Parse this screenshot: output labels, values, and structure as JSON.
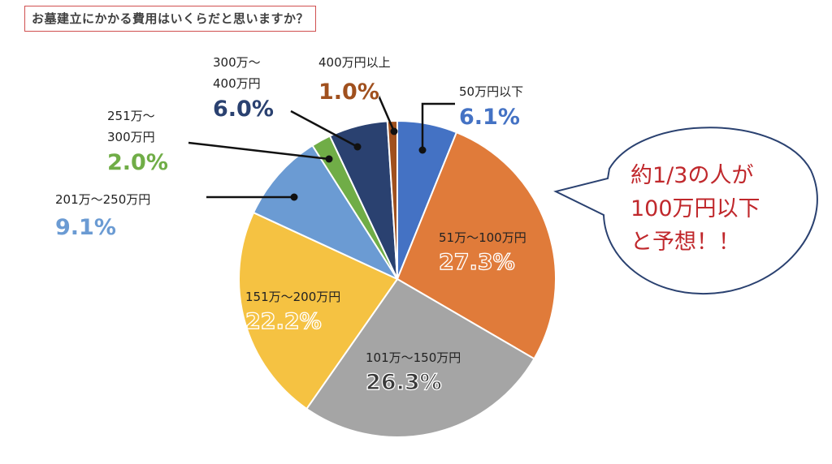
{
  "title": "お墓建立にかかる費用はいくらだと思いますか？",
  "callout": {
    "lines": [
      "約1/3の人が",
      "100万円以下",
      "と予想！！"
    ],
    "color": "#c0282c"
  },
  "chart_data": {
    "type": "pie",
    "title": "お墓建立にかかる費用はいくらだと思いますか？",
    "slices": [
      {
        "label_lines": [
          "50万円以下"
        ],
        "value": 6.1,
        "value_label": "6.1%",
        "color": "#4472c4",
        "label_color": "#4472c4"
      },
      {
        "label_lines": [
          "51万～100万円"
        ],
        "value": 27.3,
        "value_label": "27.3%",
        "color": "#e07b3a",
        "label_color": "#e07b3a"
      },
      {
        "label_lines": [
          "101万～150万円"
        ],
        "value": 26.3,
        "value_label": "26.3%",
        "color": "#a5a5a5",
        "label_color": "#3a3a3a"
      },
      {
        "label_lines": [
          "151万～200万円"
        ],
        "value": 22.2,
        "value_label": "22.2%",
        "color": "#f5c242",
        "label_color": "#f5c242"
      },
      {
        "label_lines": [
          "201万～250万円"
        ],
        "value": 9.1,
        "value_label": "9.1%",
        "color": "#6b9bd3",
        "label_color": "#6b9bd3"
      },
      {
        "label_lines": [
          "251万～",
          "300万円"
        ],
        "value": 2.0,
        "value_label": "2.0%",
        "color": "#70ad47",
        "label_color": "#70ad47"
      },
      {
        "label_lines": [
          "300万～",
          "400万円"
        ],
        "value": 6.0,
        "value_label": "6.0%",
        "color": "#2a4170",
        "label_color": "#2a4170"
      },
      {
        "label_lines": [
          "400万円以上"
        ],
        "value": 1.0,
        "value_label": "1.0%",
        "color": "#a0501e",
        "label_color": "#a0501e"
      }
    ]
  }
}
